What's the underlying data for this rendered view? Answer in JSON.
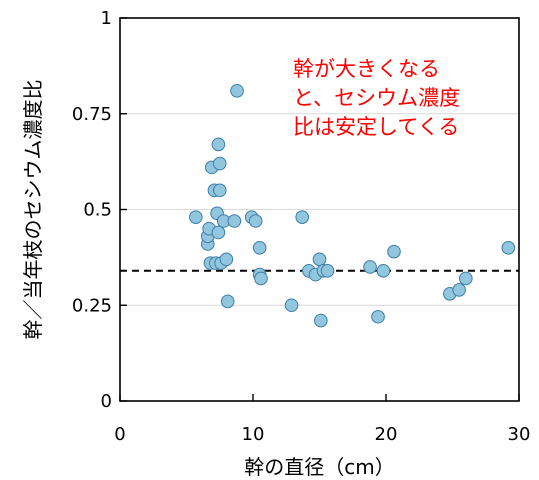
{
  "chart_data": {
    "type": "scatter",
    "title": "",
    "xlabel": "幹の直径（cm）",
    "ylabel": "幹／当年枝のセシウム濃度比",
    "xlim": [
      0,
      30
    ],
    "ylim": [
      0,
      1
    ],
    "x_ticks": [
      "0",
      "10",
      "20",
      "30"
    ],
    "y_ticks": [
      "0",
      "0.25",
      "0.5",
      "0.75",
      "1"
    ],
    "grid": "horizontal",
    "reference_line": {
      "y": 0.34,
      "style": "dashed"
    },
    "annotation": [
      "幹が大きくなる",
      "と、セシウム濃度",
      "比は安定してくる"
    ],
    "colors": {
      "point_fill": "#92c6de",
      "point_stroke": "#3d7ea6",
      "annotation": "#ff0000",
      "grid": "#d9d9d9"
    },
    "series": [
      {
        "points": [
          [
            5.7,
            0.48
          ],
          [
            6.6,
            0.41
          ],
          [
            6.6,
            0.43
          ],
          [
            6.7,
            0.45
          ],
          [
            6.8,
            0.36
          ],
          [
            6.9,
            0.61
          ],
          [
            7.1,
            0.55
          ],
          [
            7.2,
            0.36
          ],
          [
            7.3,
            0.49
          ],
          [
            7.4,
            0.67
          ],
          [
            7.4,
            0.44
          ],
          [
            7.5,
            0.55
          ],
          [
            7.5,
            0.62
          ],
          [
            7.6,
            0.36
          ],
          [
            7.8,
            0.47
          ],
          [
            8.0,
            0.37
          ],
          [
            8.1,
            0.26
          ],
          [
            8.6,
            0.47
          ],
          [
            8.8,
            0.81
          ],
          [
            9.9,
            0.48
          ],
          [
            10.2,
            0.47
          ],
          [
            10.5,
            0.4
          ],
          [
            10.5,
            0.33
          ],
          [
            10.6,
            0.32
          ],
          [
            12.9,
            0.25
          ],
          [
            13.7,
            0.48
          ],
          [
            14.2,
            0.34
          ],
          [
            14.7,
            0.33
          ],
          [
            15.0,
            0.37
          ],
          [
            15.1,
            0.21
          ],
          [
            15.3,
            0.34
          ],
          [
            15.6,
            0.34
          ],
          [
            18.8,
            0.35
          ],
          [
            19.4,
            0.22
          ],
          [
            19.8,
            0.34
          ],
          [
            20.6,
            0.39
          ],
          [
            24.8,
            0.28
          ],
          [
            25.5,
            0.29
          ],
          [
            26.0,
            0.32
          ],
          [
            29.2,
            0.4
          ]
        ]
      }
    ]
  }
}
